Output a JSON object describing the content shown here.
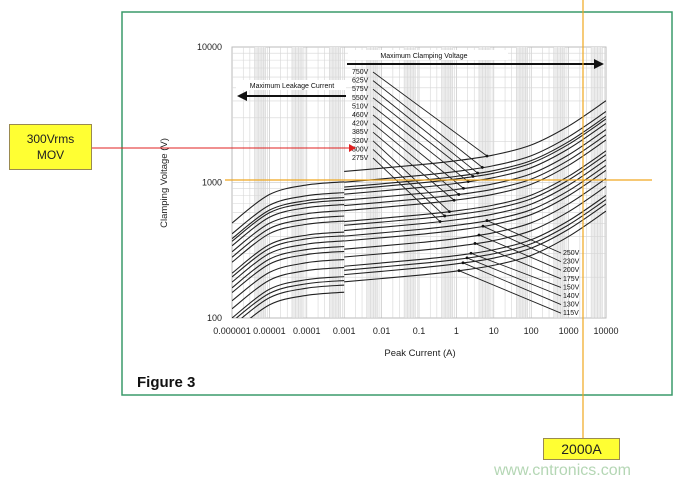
{
  "figure_label": "Figure 3",
  "callouts": {
    "mov_line1": "300Vrms",
    "mov_line2": "MOV",
    "current": "2000A",
    "current_value_A": 2000,
    "voltage_marker_V": 1000
  },
  "watermark": "www.cntronics.com",
  "colors": {
    "frame": "#3a9a6a",
    "curve": "#222222",
    "marker_line": "#f0a820",
    "pointer": "#e02020",
    "callout_fill": "#ffff33"
  },
  "chart_data": {
    "type": "line",
    "title": "",
    "xlabel": "Peak Current (A)",
    "ylabel": "Clamping Voltage (V)",
    "xscale": "log",
    "yscale": "log",
    "xlim": [
      1e-06,
      10000
    ],
    "ylim": [
      100,
      10000
    ],
    "grid": true,
    "x_ticks": [
      "0.000001",
      "0.00001",
      "0.0001",
      "0.001",
      "0.01",
      "0.1",
      "1",
      "10",
      "100",
      "1000",
      "10000"
    ],
    "y_ticks": [
      "100",
      "1000",
      "10000"
    ],
    "annotations": {
      "clamping": "Maximum Clamping Voltage",
      "leakage": "Maximum Leakage Current"
    },
    "leakage_x": [
      1e-06,
      1e-05,
      0.0001,
      0.001
    ],
    "clamping_x": [
      0.001,
      0.1,
      1,
      10,
      100,
      1000,
      10000
    ],
    "series": [
      {
        "name": "115V",
        "leakage": [
          77,
          125,
          147,
          155
        ],
        "clamping": [
          185,
          207,
          222,
          245,
          290,
          400,
          615
        ]
      },
      {
        "name": "130V",
        "leakage": [
          87,
          141,
          166,
          175
        ],
        "clamping": [
          209,
          234,
          251,
          277,
          328,
          452,
          695
        ]
      },
      {
        "name": "140V",
        "leakage": [
          94,
          152,
          179,
          189
        ],
        "clamping": [
          225,
          252,
          270,
          298,
          353,
          487,
          748
        ]
      },
      {
        "name": "150V",
        "leakage": [
          100,
          163,
          192,
          202
        ],
        "clamping": [
          241,
          270,
          289,
          319,
          378,
          522,
          802
        ]
      },
      {
        "name": "175V",
        "leakage": [
          117,
          190,
          224,
          236
        ],
        "clamping": [
          282,
          315,
          338,
          373,
          441,
          609,
          936
        ]
      },
      {
        "name": "200V",
        "leakage": [
          134,
          217,
          256,
          270
        ],
        "clamping": [
          322,
          360,
          386,
          426,
          504,
          696,
          1070
        ]
      },
      {
        "name": "230V",
        "leakage": [
          154,
          250,
          294,
          310
        ],
        "clamping": [
          370,
          414,
          444,
          490,
          580,
          800,
          1230
        ]
      },
      {
        "name": "250V",
        "leakage": [
          167,
          272,
          320,
          337
        ],
        "clamping": [
          402,
          450,
          483,
          533,
          630,
          870,
          1337
        ]
      },
      {
        "name": "275V",
        "leakage": [
          184,
          299,
          351,
          371
        ],
        "clamping": [
          442,
          495,
          531,
          586,
          693,
          956,
          1470
        ]
      },
      {
        "name": "300V",
        "leakage": [
          201,
          326,
          384,
          404
        ],
        "clamping": [
          483,
          540,
          579,
          639,
          757,
          1044,
          1605
        ]
      },
      {
        "name": "320V",
        "leakage": [
          214,
          348,
          409,
          431
        ],
        "clamping": [
          515,
          576,
          618,
          682,
          807,
          1113,
          1712
        ]
      },
      {
        "name": "385V",
        "leakage": [
          258,
          419,
          492,
          519
        ],
        "clamping": [
          619,
          693,
          743,
          820,
          971,
          1339,
          2059
        ]
      },
      {
        "name": "420V",
        "leakage": [
          281,
          457,
          537,
          566
        ],
        "clamping": [
          676,
          756,
          811,
          895,
          1059,
          1461,
          2246
        ]
      },
      {
        "name": "460V",
        "leakage": [
          308,
          500,
          588,
          620
        ],
        "clamping": [
          740,
          828,
          888,
          980,
          1160,
          1600,
          2460
        ]
      },
      {
        "name": "510V",
        "leakage": [
          341,
          554,
          652,
          687
        ],
        "clamping": [
          820,
          918,
          985,
          1087,
          1286,
          1774,
          2728
        ]
      },
      {
        "name": "550V",
        "leakage": [
          368,
          598,
          703,
          741
        ],
        "clamping": [
          885,
          990,
          1062,
          1172,
          1387,
          1913,
          2942
        ]
      },
      {
        "name": "575V",
        "leakage": [
          385,
          625,
          735,
          775
        ],
        "clamping": [
          925,
          1035,
          1110,
          1225,
          1450,
          2000,
          3075
        ]
      },
      {
        "name": "625V",
        "leakage": [
          418,
          679,
          799,
          842
        ],
        "clamping": [
          1005,
          1125,
          1207,
          1332,
          1576,
          2174,
          3343
        ]
      },
      {
        "name": "750V",
        "leakage": [
          502,
          815,
          959,
          1011
        ],
        "clamping": [
          1207,
          1350,
          1448,
          1598,
          1891,
          2609,
          4011
        ]
      }
    ],
    "upper_labels": [
      "750V",
      "625V",
      "575V",
      "550V",
      "510V",
      "460V",
      "420V",
      "385V",
      "320V",
      "300V",
      "275V"
    ],
    "lower_labels": [
      "250V",
      "230V",
      "200V",
      "175V",
      "150V",
      "140V",
      "130V",
      "115V"
    ]
  }
}
